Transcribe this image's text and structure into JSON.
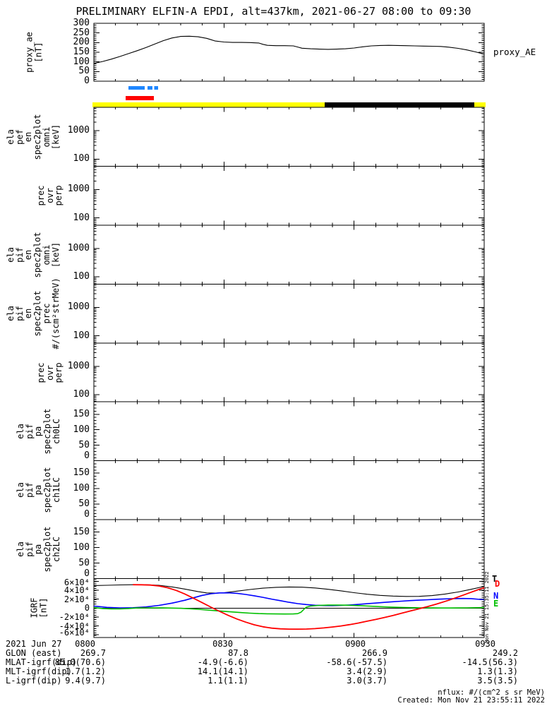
{
  "title": "PRELIMINARY ELFIN-A EPDI, alt=437km, 2021-06-27 08:00 to 09:30",
  "top_right_label": "proxy_AE",
  "side_note": "Mon Nov 21 15:35:11 2022",
  "footer_right": {
    "nflux": "nflux: #/(cm^2 s sr MeV)",
    "created": "Created: Mon Nov 21 23:55:11 2022"
  },
  "igrf_legend": [
    {
      "letter": "T",
      "color": "#000000"
    },
    {
      "letter": "D",
      "color": "#ff0000"
    },
    {
      "letter": "N",
      "color": "#0000ff"
    },
    {
      "letter": "E",
      "color": "#00c000"
    }
  ],
  "colors": {
    "status_yellow": "#ffff00",
    "status_black": "#000000",
    "bar_red": "#ff0000",
    "bar_blue": "#1e86ff",
    "line_black": "#000000",
    "line_red": "#ff0000",
    "line_blue": "#0000ff",
    "line_green": "#00c000"
  },
  "xaxis": {
    "tick_labels": [
      "0800",
      "0830",
      "0900",
      "0930"
    ],
    "major_minutes": [
      0,
      30,
      60,
      90
    ],
    "minor_step_minutes": 5,
    "range_minutes": [
      0,
      90
    ]
  },
  "footer": {
    "row_labels": [
      "2021 Jun 27",
      "GLON (east)",
      "MLAT-igrf(dip)",
      "MLT-igrf(dip)",
      "L-igrf(dip)"
    ],
    "rows": [
      [
        "0800",
        "0830",
        "0900",
        "0930"
      ],
      [
        "269.7",
        "87.8",
        "266.9",
        "249.2"
      ],
      [
        "85.0(70.6)",
        "-4.9(-6.6)",
        "-58.6(-57.5)",
        "-14.5(56.3)"
      ],
      [
        "1.7(1.2)",
        "14.1(14.1)",
        "3.4(2.9)",
        "1.3(1.3)"
      ],
      [
        "9.4(9.7)",
        "1.1(1.1)",
        "3.0(3.7)",
        "3.5(3.5)"
      ]
    ]
  },
  "chart_data": [
    {
      "id": "proxy_ae",
      "type": "line",
      "scale": "linear",
      "label_lines": [
        "proxy_ae",
        "[nT]"
      ],
      "right_label": "proxy_AE",
      "ylim": [
        0,
        300
      ],
      "ytick_values": [
        0,
        50,
        100,
        150,
        200,
        250,
        300
      ],
      "x_minutes": [
        0,
        2,
        4,
        6,
        8,
        10,
        12,
        14,
        16,
        18,
        20,
        22,
        24,
        26,
        27,
        28,
        30,
        32,
        34,
        36,
        38,
        39,
        40,
        42,
        44,
        46,
        47,
        48,
        50,
        52,
        54,
        56,
        58,
        60,
        62,
        64,
        66,
        68,
        70,
        72,
        74,
        76,
        78,
        80,
        82,
        84,
        86,
        88,
        90
      ],
      "values": [
        92,
        102,
        114,
        128,
        143,
        158,
        174,
        192,
        210,
        224,
        232,
        233,
        230,
        222,
        215,
        208,
        203,
        201,
        201,
        200,
        198,
        191,
        186,
        184,
        184,
        183,
        177,
        171,
        168,
        166,
        165,
        166,
        168,
        172,
        178,
        183,
        185,
        186,
        185,
        184,
        183,
        182,
        181,
        180,
        176,
        170,
        162,
        152,
        140
      ]
    },
    {
      "id": "availability_bars",
      "type": "interval-bars",
      "blue_dash_segments_min": [
        [
          8.0,
          11.7
        ],
        [
          12.4,
          13.5
        ],
        [
          13.9,
          14.8
        ]
      ],
      "red_segment_min": [
        7.3,
        13.8
      ],
      "status_bar_range_min": [
        0,
        90
      ],
      "status_black_segment_min": [
        53.2,
        87.7
      ]
    },
    {
      "id": "ela_pef_en_spec2plot_omni",
      "type": "spectrogram",
      "empty": true,
      "scale": "log",
      "label_lines": [
        "ela",
        "pef",
        "en",
        "spec2plot",
        "omni",
        "[keV]"
      ],
      "ytick_values": [
        1000,
        100
      ],
      "ylim": [
        56,
        6600
      ]
    },
    {
      "id": "prec_ovr_perp_1",
      "type": "spectrogram",
      "empty": true,
      "scale": "log",
      "label_lines": [
        "prec",
        "ovr",
        "perp"
      ],
      "ytick_values": [
        1000,
        100
      ],
      "ylim": [
        56,
        6600
      ]
    },
    {
      "id": "ela_pif_en_spec2plot_omni",
      "type": "spectrogram",
      "empty": true,
      "scale": "log",
      "label_lines": [
        "ela",
        "pif",
        "en",
        "spec2plot",
        "omni",
        "[keV]"
      ],
      "ytick_values": [
        1000,
        100
      ],
      "ylim": [
        56,
        6600
      ]
    },
    {
      "id": "ela_pif_en_spec2plot_prec",
      "type": "spectrogram",
      "empty": true,
      "scale": "log",
      "label_lines": [
        "ela",
        "pif",
        "en",
        "spec2plot",
        "prec",
        "#/(scm²strMeV)"
      ],
      "ytick_values": [
        1000,
        100
      ],
      "ylim": [
        56,
        6600
      ]
    },
    {
      "id": "prec_ovr_perp_2",
      "type": "spectrogram",
      "empty": true,
      "scale": "log",
      "label_lines": [
        "prec",
        "ovr",
        "perp"
      ],
      "ytick_values": [
        1000,
        100
      ],
      "ylim": [
        56,
        6600
      ]
    },
    {
      "id": "ela_pif_pa_spec2plot_ch0LC",
      "type": "spectrogram",
      "empty": true,
      "scale": "linear",
      "label_lines": [
        "ela",
        "pif",
        "pa",
        "spec2plot",
        "ch0LC"
      ],
      "ytick_values": [
        0,
        50,
        100,
        150
      ],
      "ylim": [
        0,
        190
      ]
    },
    {
      "id": "ela_pif_pa_spec2plot_ch1LC",
      "type": "spectrogram",
      "empty": true,
      "scale": "linear",
      "label_lines": [
        "ela",
        "pif",
        "pa",
        "spec2plot",
        "ch1LC"
      ],
      "ytick_values": [
        0,
        50,
        100,
        150
      ],
      "ylim": [
        0,
        190
      ]
    },
    {
      "id": "ela_pif_pa_spec2plot_ch2LC",
      "type": "spectrogram",
      "empty": true,
      "scale": "linear",
      "label_lines": [
        "ela",
        "pif",
        "pa",
        "spec2plot",
        "ch2LC"
      ],
      "ytick_values": [
        0,
        50,
        100,
        150
      ],
      "ylim": [
        0,
        190
      ]
    },
    {
      "id": "igrf",
      "type": "line",
      "scale": "linear",
      "label_lines": [
        "IGRF",
        "[nT]"
      ],
      "ylim": [
        -66000,
        66000
      ],
      "ytick_values": [
        60000,
        40000,
        20000,
        0,
        -20000,
        -40000,
        -60000
      ],
      "ytick_labels": [
        "6×10⁴",
        "4×10⁴",
        "2×10⁴",
        "0",
        "-2×10⁴",
        "-4×10⁴",
        "-6×10⁴"
      ],
      "series": [
        {
          "name": "T",
          "color": "#000000",
          "points": [
            [
              0,
              50500
            ],
            [
              3,
              51000
            ],
            [
              6,
              51800
            ],
            [
              9,
              52300
            ],
            [
              12,
              52300
            ],
            [
              15,
              51000
            ],
            [
              18,
              47500
            ],
            [
              21,
              42500
            ],
            [
              24,
              37000
            ],
            [
              26,
              34000
            ],
            [
              28,
              33500
            ],
            [
              30,
              34500
            ],
            [
              33,
              38000
            ],
            [
              36,
              41500
            ],
            [
              39,
              44500
            ],
            [
              42,
              46500
            ],
            [
              45,
              47200
            ],
            [
              48,
              46800
            ],
            [
              51,
              45000
            ],
            [
              54,
              42000
            ],
            [
              57,
              38500
            ],
            [
              60,
              34500
            ],
            [
              63,
              31000
            ],
            [
              66,
              28500
            ],
            [
              69,
              26800
            ],
            [
              72,
              26000
            ],
            [
              75,
              26300
            ],
            [
              78,
              28000
            ],
            [
              81,
              31500
            ],
            [
              84,
              36000
            ],
            [
              87,
              42000
            ],
            [
              90,
              48500
            ]
          ]
        },
        {
          "name": "N",
          "color": "#0000ff",
          "points": [
            [
              0,
              4500
            ],
            [
              3,
              1500
            ],
            [
              6,
              500
            ],
            [
              9,
              800
            ],
            [
              12,
              2500
            ],
            [
              15,
              6000
            ],
            [
              18,
              11000
            ],
            [
              21,
              17500
            ],
            [
              23,
              23000
            ],
            [
              25,
              28500
            ],
            [
              27,
              32000
            ],
            [
              29,
              34000
            ],
            [
              31,
              34200
            ],
            [
              33,
              33000
            ],
            [
              35,
              30500
            ],
            [
              37,
              27500
            ],
            [
              39,
              24000
            ],
            [
              41,
              20000
            ],
            [
              43,
              16500
            ],
            [
              45,
              13000
            ],
            [
              47,
              10000
            ],
            [
              49,
              7800
            ],
            [
              51,
              6300
            ],
            [
              53,
              5600
            ],
            [
              55,
              5500
            ],
            [
              57,
              6000
            ],
            [
              59,
              7000
            ],
            [
              61,
              8200
            ],
            [
              63,
              9700
            ],
            [
              65,
              11200
            ],
            [
              67,
              12700
            ],
            [
              69,
              14200
            ],
            [
              71,
              15500
            ],
            [
              73,
              16700
            ],
            [
              75,
              17700
            ],
            [
              77,
              18700
            ],
            [
              79,
              19700
            ],
            [
              81,
              20500
            ],
            [
              83,
              21200
            ],
            [
              85,
              21500
            ],
            [
              87,
              21200
            ],
            [
              89,
              19500
            ],
            [
              90,
              18500
            ]
          ]
        },
        {
          "name": "E",
          "color": "#00c000",
          "points": [
            [
              0,
              1000
            ],
            [
              2,
              -1000
            ],
            [
              4,
              -1800
            ],
            [
              6,
              -1800
            ],
            [
              8,
              -1000
            ],
            [
              10,
              300
            ],
            [
              12,
              500
            ],
            [
              14,
              500
            ],
            [
              16,
              300
            ],
            [
              18,
              0
            ],
            [
              20,
              -500
            ],
            [
              22,
              -1500
            ],
            [
              24,
              -2800
            ],
            [
              26,
              -4200
            ],
            [
              28,
              -5800
            ],
            [
              30,
              -7300
            ],
            [
              32,
              -8800
            ],
            [
              34,
              -10200
            ],
            [
              36,
              -11400
            ],
            [
              38,
              -12300
            ],
            [
              40,
              -12900
            ],
            [
              42,
              -13200
            ],
            [
              44,
              -13300
            ],
            [
              46,
              -13100
            ],
            [
              47,
              -12600
            ],
            [
              47.8,
              -9000
            ],
            [
              48.4,
              -3000
            ],
            [
              49,
              2000
            ],
            [
              50,
              4500
            ],
            [
              52,
              6000
            ],
            [
              54,
              6600
            ],
            [
              56,
              6700
            ],
            [
              58,
              6400
            ],
            [
              60,
              5800
            ],
            [
              62,
              5000
            ],
            [
              64,
              4100
            ],
            [
              66,
              3200
            ],
            [
              68,
              2400
            ],
            [
              70,
              1700
            ],
            [
              72,
              1200
            ],
            [
              74,
              800
            ],
            [
              76,
              500
            ],
            [
              78,
              300
            ],
            [
              80,
              200
            ],
            [
              82,
              200
            ],
            [
              84,
              300
            ],
            [
              86,
              500
            ],
            [
              88,
              800
            ],
            [
              90,
              1000
            ]
          ]
        },
        {
          "name": "D",
          "color": "#ff0000",
          "points": [
            [
              9,
              52300
            ],
            [
              11,
              52200
            ],
            [
              13,
              51500
            ],
            [
              15,
              49500
            ],
            [
              17,
              45500
            ],
            [
              19,
              39500
            ],
            [
              21,
              31500
            ],
            [
              23,
              22000
            ],
            [
              25,
              12000
            ],
            [
              27,
              2000
            ],
            [
              29,
              -7500
            ],
            [
              31,
              -16500
            ],
            [
              33,
              -24500
            ],
            [
              35,
              -31500
            ],
            [
              37,
              -37500
            ],
            [
              39,
              -42000
            ],
            [
              41,
              -45000
            ],
            [
              43,
              -46500
            ],
            [
              45,
              -47200
            ],
            [
              47,
              -47300
            ],
            [
              49,
              -47000
            ],
            [
              51,
              -46000
            ],
            [
              53,
              -44500
            ],
            [
              55,
              -42500
            ],
            [
              57,
              -40000
            ],
            [
              59,
              -37000
            ],
            [
              61,
              -33500
            ],
            [
              63,
              -29500
            ],
            [
              65,
              -25500
            ],
            [
              67,
              -21000
            ],
            [
              69,
              -16500
            ],
            [
              71,
              -11500
            ],
            [
              73,
              -6500
            ],
            [
              75,
              -1500
            ],
            [
              77,
              3500
            ],
            [
              79,
              9000
            ],
            [
              81,
              15000
            ],
            [
              83,
              21500
            ],
            [
              85,
              28500
            ],
            [
              87,
              35500
            ],
            [
              89,
              42500
            ],
            [
              90,
              45500
            ]
          ]
        }
      ]
    }
  ]
}
